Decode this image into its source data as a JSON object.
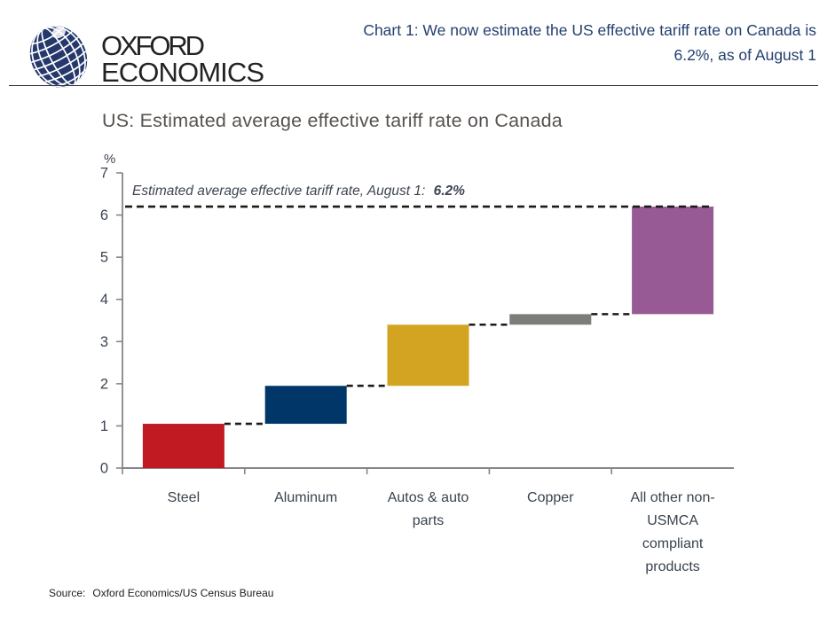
{
  "header": {
    "logo": {
      "word1": "OXFORD",
      "word2": "ECONOMICS"
    },
    "title_lines": [
      "Chart 1: We now estimate the US effective tariff rate on Canada is",
      "6.2%, as of August 1"
    ]
  },
  "chart_data": {
    "type": "bar",
    "subtype": "waterfall",
    "title": "US: Estimated average effective tariff rate on Canada",
    "ylabel": "%",
    "ylim": [
      0,
      7
    ],
    "yticks": [
      0,
      1,
      2,
      3,
      4,
      5,
      6,
      7
    ],
    "grid": false,
    "legend": false,
    "categories": [
      "Steel",
      "Aluminum",
      "Autos & auto parts",
      "Copper",
      "All other non-USMCA compliant products"
    ],
    "segments": [
      {
        "label": "Steel",
        "label_lines": [
          "Steel"
        ],
        "start": 0,
        "end": 1.05,
        "value": 1.05,
        "color": "#C11A22"
      },
      {
        "label": "Aluminum",
        "label_lines": [
          "Aluminum"
        ],
        "start": 1.05,
        "end": 1.95,
        "value": 0.9,
        "color": "#003768"
      },
      {
        "label": "Autos & auto parts",
        "label_lines": [
          "Autos & auto",
          "parts"
        ],
        "start": 1.95,
        "end": 3.4,
        "value": 1.45,
        "color": "#D2A421"
      },
      {
        "label": "Copper",
        "label_lines": [
          "Copper"
        ],
        "start": 3.4,
        "end": 3.65,
        "value": 0.25,
        "color": "#7C7C78"
      },
      {
        "label": "All other non-USMCA compliant products",
        "label_lines": [
          "All other non-",
          "USMCA",
          "compliant",
          "products"
        ],
        "start": 3.65,
        "end": 6.2,
        "value": 2.55,
        "color": "#985A94"
      }
    ],
    "total": 6.2,
    "reference_line": {
      "value": 6.2,
      "style": "dashed",
      "label": "Estimated average effective tariff rate, August 1:",
      "label_value": "6.2%"
    },
    "connector_style": "dashed"
  },
  "source": {
    "label": "Source:",
    "text": "Oxford Economics/US Census Bureau"
  },
  "colors": {
    "header_title": "#24406F",
    "chart_title": "#57524E",
    "tick_text": "#3D4552",
    "category_text": "#39434E",
    "annotation_text": "#3E4653",
    "source_text": "#1D1D1D",
    "axis": "#85858A",
    "dashed_line": "#1A1A1A",
    "logo_globe": "#24386B"
  }
}
